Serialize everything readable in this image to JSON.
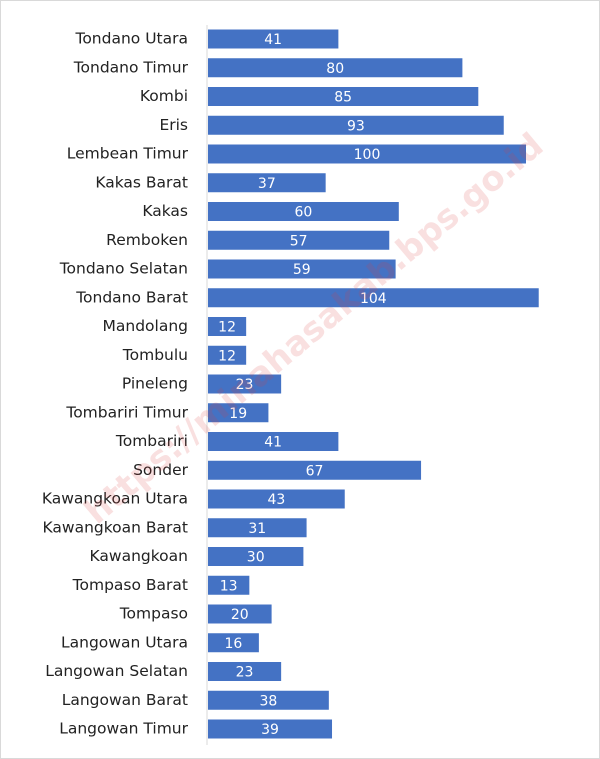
{
  "chart_data": {
    "type": "bar",
    "orientation": "horizontal",
    "watermark": "https://minahasakab.bps.go.id",
    "color": "#4472c4",
    "categories": [
      "Tondano Utara",
      "Tondano Timur",
      "Kombi",
      "Eris",
      "Lembean Timur",
      "Kakas Barat",
      "Kakas",
      "Remboken",
      "Tondano Selatan",
      "Tondano Barat",
      "Mandolang",
      "Tombulu",
      "Pineleng",
      "Tombariri Timur",
      "Tombariri",
      "Sonder",
      "Kawangkoan Utara",
      "Kawangkoan Barat",
      "Kawangkoan",
      "Tompaso Barat",
      "Tompaso",
      "Langowan Utara",
      "Langowan Selatan",
      "Langowan Barat",
      "Langowan Timur"
    ],
    "values": [
      41,
      80,
      85,
      93,
      100,
      37,
      60,
      57,
      59,
      104,
      12,
      12,
      23,
      19,
      41,
      67,
      43,
      31,
      30,
      13,
      20,
      16,
      23,
      38,
      39
    ]
  }
}
